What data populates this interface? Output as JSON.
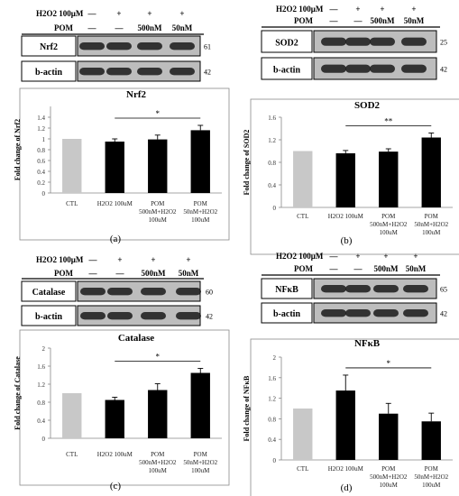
{
  "panels": [
    {
      "id": "a",
      "panel_label": "(a)",
      "treatment_labels": [
        "H2O2 100μM",
        "POM"
      ],
      "treatment_signs": [
        [
          "—",
          "+",
          "+",
          "+"
        ],
        [
          "—",
          "—",
          "500nM",
          "50nM"
        ]
      ],
      "blots": [
        {
          "name": "Nrf2",
          "mw": "61"
        },
        {
          "name": "b-actin",
          "mw": "42"
        }
      ],
      "chart_data": {
        "type": "bar",
        "title": "Nrf2",
        "ylabel": "Fold change of Nrf2",
        "xlabel": "",
        "categories": [
          "CTL",
          "H2O2 100uM",
          "POM 500nM+H2O2 100uM",
          "POM 50nM+H2O2 100uM"
        ],
        "values": [
          1.0,
          0.95,
          0.99,
          1.16
        ],
        "errors": [
          0,
          0.05,
          0.08,
          0.09
        ],
        "bar_colors": [
          "#c8c8c8",
          "#000000",
          "#000000",
          "#000000"
        ],
        "ylim": [
          0,
          1.6
        ],
        "yticks": [
          "0",
          "0.2",
          "0.4",
          "0.6",
          "0.8",
          "1",
          "1.2",
          "1.4"
        ],
        "significance": {
          "from": 1,
          "to": 3,
          "label": "*"
        }
      }
    },
    {
      "id": "b",
      "panel_label": "(b)",
      "treatment_labels": [
        "H2O2 100μM",
        "POM"
      ],
      "treatment_signs": [
        [
          "—",
          "+",
          "+",
          "+"
        ],
        [
          "—",
          "—",
          "500nM",
          "50nM"
        ]
      ],
      "blots": [
        {
          "name": "SOD2",
          "mw": "25"
        },
        {
          "name": "b-actin",
          "mw": "42"
        }
      ],
      "chart_data": {
        "type": "bar",
        "title": "SOD2",
        "ylabel": "Fold change of SOD2",
        "xlabel": "",
        "categories": [
          "CTL",
          "H2O2 100uM",
          "POM 500nM+H2O2 100uM",
          "POM 50nM+H2O2 100uM"
        ],
        "values": [
          1.0,
          0.96,
          0.99,
          1.24
        ],
        "errors": [
          0,
          0.05,
          0.05,
          0.08
        ],
        "bar_colors": [
          "#c8c8c8",
          "#000000",
          "#000000",
          "#000000"
        ],
        "ylim": [
          0,
          1.6
        ],
        "yticks": [
          "0",
          "0.4",
          "0.8",
          "1.2",
          "1.6"
        ],
        "significance": {
          "from": 1,
          "to": 3,
          "label": "**"
        }
      }
    },
    {
      "id": "c",
      "panel_label": "(c)",
      "treatment_labels": [
        "H2O2 100μM",
        "POM"
      ],
      "treatment_signs": [
        [
          "—",
          "+",
          "+",
          "+"
        ],
        [
          "—",
          "—",
          "500nM",
          "50nM"
        ]
      ],
      "blots": [
        {
          "name": "Catalase",
          "mw": "60"
        },
        {
          "name": "b-actin",
          "mw": "42"
        }
      ],
      "chart_data": {
        "type": "bar",
        "title": "Catalase",
        "ylabel": "Fold change of Catalase",
        "xlabel": "",
        "categories": [
          "CTL",
          "H2O2 100uM",
          "POM 500nM+H2O2 100uM",
          "POM 50nM+H2O2 100uM"
        ],
        "values": [
          1.0,
          0.85,
          1.07,
          1.45
        ],
        "errors": [
          0,
          0.06,
          0.14,
          0.1
        ],
        "bar_colors": [
          "#c8c8c8",
          "#000000",
          "#000000",
          "#000000"
        ],
        "ylim": [
          0,
          2.0
        ],
        "yticks": [
          "0",
          "0.4",
          "0.8",
          "1.2",
          "1.6",
          "2"
        ],
        "significance": {
          "from": 1,
          "to": 3,
          "label": "*"
        }
      }
    },
    {
      "id": "d",
      "panel_label": "(d)",
      "treatment_labels": [
        "H2O2 100μM",
        "POM"
      ],
      "treatment_signs": [
        [
          "—",
          "+",
          "+",
          "+"
        ],
        [
          "—",
          "—",
          "500nM",
          "50nM"
        ]
      ],
      "blots": [
        {
          "name": "NFκB",
          "mw": "65"
        },
        {
          "name": "b-actin",
          "mw": "42"
        }
      ],
      "chart_data": {
        "type": "bar",
        "title": "NFκB",
        "ylabel": "Fold change of NFκB",
        "xlabel": "",
        "categories": [
          "CTL",
          "H2O2 100uM",
          "POM 500nM+H2O2 100uM",
          "POM 50nM+H2O2 100uM"
        ],
        "values": [
          1.0,
          1.35,
          0.9,
          0.75
        ],
        "errors": [
          0,
          0.3,
          0.2,
          0.16
        ],
        "bar_colors": [
          "#c8c8c8",
          "#000000",
          "#000000",
          "#000000"
        ],
        "ylim": [
          0,
          2.0
        ],
        "yticks": [
          "0",
          "0.4",
          "0.8",
          "1.2",
          "1.6",
          "2"
        ],
        "significance": {
          "from": 1,
          "to": 3,
          "label": "*"
        }
      }
    }
  ]
}
